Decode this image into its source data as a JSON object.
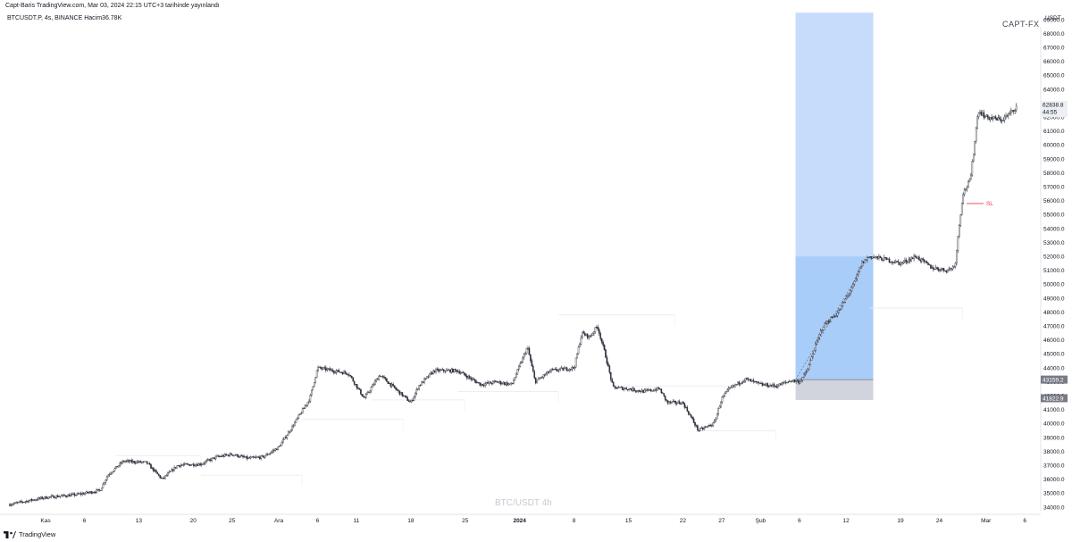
{
  "header": {
    "published_line": "Capt-Baris TradingView.com, Mar 03, 2024 22:15 UTC+3 tarihinde yayınlandı",
    "symbol_line": "BTCUSDT.P, 4s, BINANCE  Hacim36.78K",
    "brand": "CAPT-FX",
    "currency": "USDT"
  },
  "watermark": "BTC/USDT 4h",
  "footer": {
    "logo_text": "TradingView",
    "logo_icon": "tradingview-logo-icon"
  },
  "chart_data": {
    "type": "candlestick",
    "symbol": "BTCUSDT.P",
    "timeframe": "4s",
    "exchange": "BINANCE",
    "y_axis": {
      "range": [
        33500,
        69500
      ],
      "ticks": [
        "34000.0",
        "35000.0",
        "36000.0",
        "37000.0",
        "38000.0",
        "39000.0",
        "40000.0",
        "41000.0",
        "42000.0",
        "43000.0",
        "44000.0",
        "45000.0",
        "46000.0",
        "47000.0",
        "48000.0",
        "49000.0",
        "50000.0",
        "51000.0",
        "52000.0",
        "53000.0",
        "54000.0",
        "55000.0",
        "56000.0",
        "57000.0",
        "58000.0",
        "59000.0",
        "60000.0",
        "61000.0",
        "62000.0",
        "63000.0",
        "64000.0",
        "65000.0",
        "66000.0",
        "67000.0",
        "68000.0",
        "69000.0"
      ]
    },
    "x_axis": {
      "ticks": [
        {
          "label": "Kas",
          "day": 0
        },
        {
          "label": "6",
          "day": 5
        },
        {
          "label": "13",
          "day": 12
        },
        {
          "label": "20",
          "day": 19
        },
        {
          "label": "25",
          "day": 24
        },
        {
          "label": "Ara",
          "day": 30
        },
        {
          "label": "6",
          "day": 35
        },
        {
          "label": "11",
          "day": 40
        },
        {
          "label": "18",
          "day": 47
        },
        {
          "label": "25",
          "day": 54
        },
        {
          "label": "2024",
          "day": 61,
          "bold": true
        },
        {
          "label": "8",
          "day": 68
        },
        {
          "label": "15",
          "day": 75
        },
        {
          "label": "22",
          "day": 82
        },
        {
          "label": "27",
          "day": 87
        },
        {
          "label": "Şub",
          "day": 92
        },
        {
          "label": "6",
          "day": 97
        },
        {
          "label": "12",
          "day": 103
        },
        {
          "label": "19",
          "day": 110
        },
        {
          "label": "24",
          "day": 115
        },
        {
          "label": "Mar",
          "day": 121
        },
        {
          "label": "6",
          "day": 126
        }
      ]
    },
    "price_path": [
      [
        -4.6,
        34200
      ],
      [
        0,
        34700
      ],
      [
        4,
        34900
      ],
      [
        7,
        35200
      ],
      [
        8,
        36300
      ],
      [
        10,
        37300
      ],
      [
        13,
        37200
      ],
      [
        15,
        36000
      ],
      [
        17,
        37000
      ],
      [
        20,
        37100
      ],
      [
        22,
        37600
      ],
      [
        24,
        37800
      ],
      [
        26,
        37500
      ],
      [
        28,
        37600
      ],
      [
        30,
        38300
      ],
      [
        32,
        40000
      ],
      [
        34,
        41800
      ],
      [
        35,
        44000
      ],
      [
        37,
        43800
      ],
      [
        39,
        43600
      ],
      [
        41,
        41800
      ],
      [
        43,
        43500
      ],
      [
        45,
        42500
      ],
      [
        47,
        41500
      ],
      [
        48,
        42700
      ],
      [
        50,
        43800
      ],
      [
        53,
        43800
      ],
      [
        56,
        42800
      ],
      [
        58,
        43000
      ],
      [
        60,
        42800
      ],
      [
        62,
        45500
      ],
      [
        63,
        43000
      ],
      [
        65,
        43800
      ],
      [
        68,
        44000
      ],
      [
        69,
        46500
      ],
      [
        70,
        46200
      ],
      [
        71,
        47000
      ],
      [
        72,
        45000
      ],
      [
        73,
        42600
      ],
      [
        75,
        42500
      ],
      [
        77,
        42300
      ],
      [
        79,
        42500
      ],
      [
        80,
        41500
      ],
      [
        82,
        41500
      ],
      [
        84,
        39500
      ],
      [
        86,
        40000
      ],
      [
        87,
        41800
      ],
      [
        88,
        42500
      ],
      [
        90,
        43200
      ],
      [
        92,
        42800
      ],
      [
        94,
        42700
      ],
      [
        96,
        43100
      ],
      [
        97,
        43000
      ],
      [
        98,
        43800
      ],
      [
        99,
        45500
      ],
      [
        100,
        47000
      ],
      [
        102,
        48000
      ],
      [
        104,
        50000
      ],
      [
        105,
        51500
      ],
      [
        106,
        52000
      ],
      [
        108,
        51800
      ],
      [
        110,
        51500
      ],
      [
        112,
        52000
      ],
      [
        114,
        51200
      ],
      [
        116,
        51000
      ],
      [
        117,
        51300
      ],
      [
        118,
        56500
      ],
      [
        119,
        57500
      ],
      [
        120,
        62500
      ],
      [
        121,
        62000
      ],
      [
        123,
        61800
      ],
      [
        124,
        62200
      ],
      [
        125,
        62839
      ]
    ],
    "volume_profile_levels": [
      {
        "price": 37700,
        "day_start": 9,
        "day_end": 20
      },
      {
        "price": 36300,
        "day_start": 20,
        "day_end": 33
      },
      {
        "price": 40300,
        "day_start": 33,
        "day_end": 46
      },
      {
        "price": 41700,
        "day_start": 42,
        "day_end": 54
      },
      {
        "price": 42300,
        "day_start": 53,
        "day_end": 66
      },
      {
        "price": 47800,
        "day_start": 66,
        "day_end": 81
      },
      {
        "price": 42700,
        "day_start": 74,
        "day_end": 88
      },
      {
        "price": 39500,
        "day_start": 84,
        "day_end": 94
      },
      {
        "price": 48300,
        "day_start": 106,
        "day_end": 118
      }
    ],
    "position_tool": {
      "type": "long",
      "entry": 43159.2,
      "stop": 41822.9,
      "target_band_top": 52000,
      "upper_area_top": 69500,
      "day_start": 96.5,
      "day_end": 106.5
    },
    "markers": [
      {
        "label": "SL",
        "price": 55800,
        "day": 118.5,
        "color": "#f23645"
      }
    ],
    "price_labels": [
      {
        "text": "62838.8",
        "sub": "44:55",
        "price": 62839,
        "style": "current"
      },
      {
        "text": "43159.2",
        "price": 43159.2,
        "style": "dark"
      },
      {
        "text": "41822.9",
        "price": 41822.9,
        "style": "dark"
      }
    ],
    "colors": {
      "candle": "#2a2e39",
      "upper_area": "#c7dcfa",
      "target_band": "#a9cdf9",
      "stop_band": "#d1d4dc",
      "current_price_bg": "#eceff3",
      "dark_label_bg": "#787b86"
    }
  }
}
